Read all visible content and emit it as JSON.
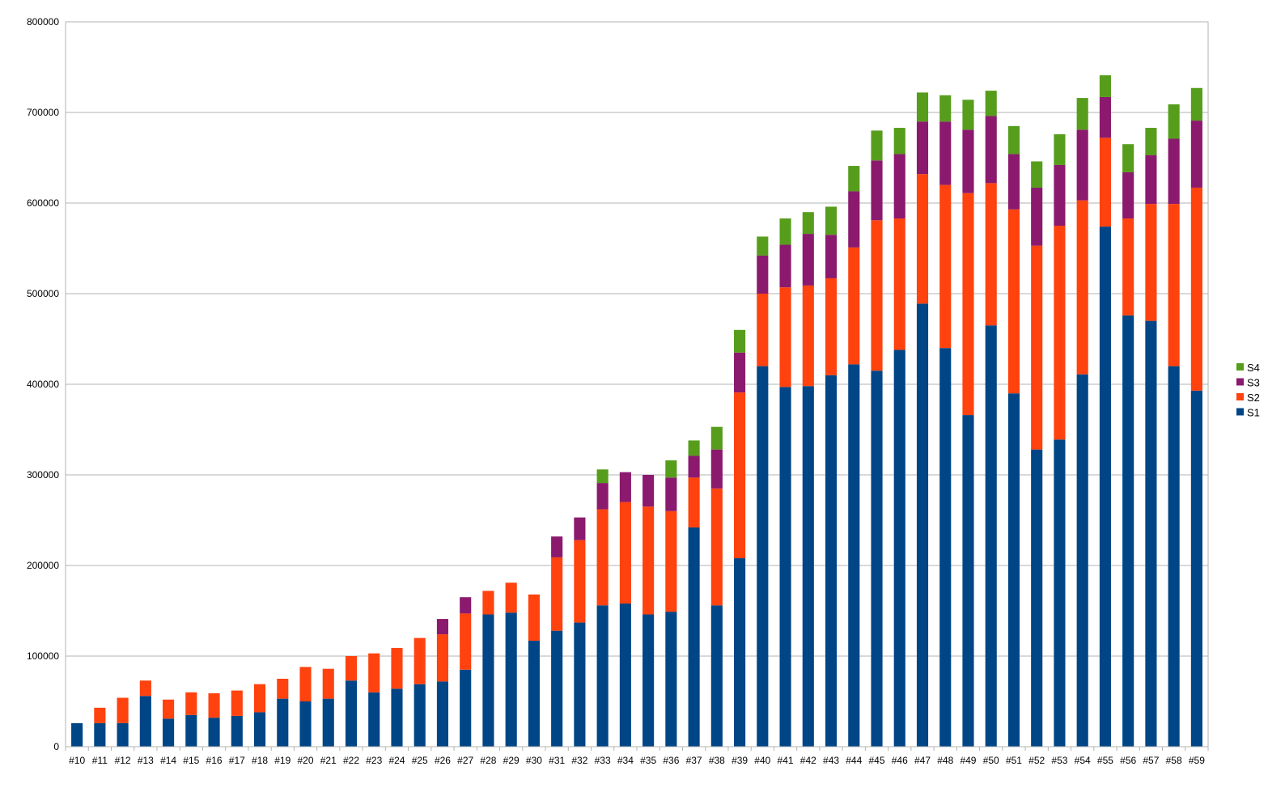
{
  "chart_data": {
    "type": "bar",
    "stacked": true,
    "categories": [
      "#10",
      "#11",
      "#12",
      "#13",
      "#14",
      "#15",
      "#16",
      "#17",
      "#18",
      "#19",
      "#20",
      "#21",
      "#22",
      "#23",
      "#24",
      "#25",
      "#26",
      "#27",
      "#28",
      "#29",
      "#30",
      "#31",
      "#32",
      "#33",
      "#34",
      "#35",
      "#36",
      "#37",
      "#38",
      "#39",
      "#40",
      "#41",
      "#42",
      "#43",
      "#44",
      "#45",
      "#46",
      "#47",
      "#48",
      "#49",
      "#50",
      "#51",
      "#52",
      "#53",
      "#54",
      "#55",
      "#56",
      "#57",
      "#58",
      "#59"
    ],
    "series": [
      {
        "name": "S1",
        "color": "#004586",
        "values": [
          26000,
          26000,
          26000,
          56000,
          31000,
          35000,
          32000,
          34000,
          38000,
          53000,
          50000,
          53000,
          73000,
          60000,
          64000,
          69000,
          72000,
          85000,
          146000,
          148000,
          117000,
          128000,
          137000,
          156000,
          158000,
          146000,
          149000,
          242000,
          156000,
          208000,
          420000,
          397000,
          398000,
          410000,
          422000,
          415000,
          438000,
          489000,
          440000,
          366000,
          465000,
          390000,
          328000,
          339000,
          411000,
          574000,
          476000,
          470000,
          420000,
          393000
        ]
      },
      {
        "name": "S2",
        "color": "#ff420e",
        "values": [
          0,
          17000,
          28000,
          17000,
          21000,
          25000,
          27000,
          28000,
          31000,
          22000,
          38000,
          33000,
          27000,
          43000,
          45000,
          51000,
          52000,
          62000,
          26000,
          33000,
          51000,
          81000,
          91000,
          106000,
          112000,
          119000,
          111000,
          55000,
          129000,
          183000,
          80000,
          110000,
          111000,
          107000,
          129000,
          166000,
          145000,
          143000,
          180000,
          245000,
          157000,
          203000,
          225000,
          236000,
          192000,
          98000,
          107000,
          129000,
          179000,
          224000
        ]
      },
      {
        "name": "S3",
        "color": "#7e0021",
        "display_color": "#8b1a6e",
        "values": [
          0,
          0,
          0,
          0,
          0,
          0,
          0,
          0,
          0,
          0,
          0,
          0,
          0,
          0,
          0,
          0,
          17000,
          18000,
          0,
          0,
          0,
          23000,
          25000,
          29000,
          33000,
          35000,
          37000,
          24000,
          43000,
          44000,
          42000,
          47000,
          57000,
          48000,
          62000,
          66000,
          71000,
          58000,
          70000,
          70000,
          74000,
          61000,
          64000,
          67000,
          78000,
          45000,
          51000,
          54000,
          72000,
          74000
        ]
      },
      {
        "name": "S4",
        "color": "#579d1c",
        "values": [
          0,
          0,
          0,
          0,
          0,
          0,
          0,
          0,
          0,
          0,
          0,
          0,
          0,
          0,
          0,
          0,
          0,
          0,
          0,
          0,
          0,
          0,
          0,
          15000,
          0,
          0,
          19000,
          17000,
          25000,
          25000,
          21000,
          29000,
          24000,
          31000,
          28000,
          33000,
          29000,
          32000,
          29000,
          33000,
          28000,
          31000,
          29000,
          34000,
          35000,
          24000,
          31000,
          30000,
          38000,
          36000
        ]
      }
    ],
    "ylim": [
      0,
      800000
    ],
    "yticks": [
      "0",
      "100000",
      "200000",
      "300000",
      "400000",
      "500000",
      "600000",
      "700000",
      "800000"
    ],
    "grid": true,
    "legend_position": "right"
  }
}
